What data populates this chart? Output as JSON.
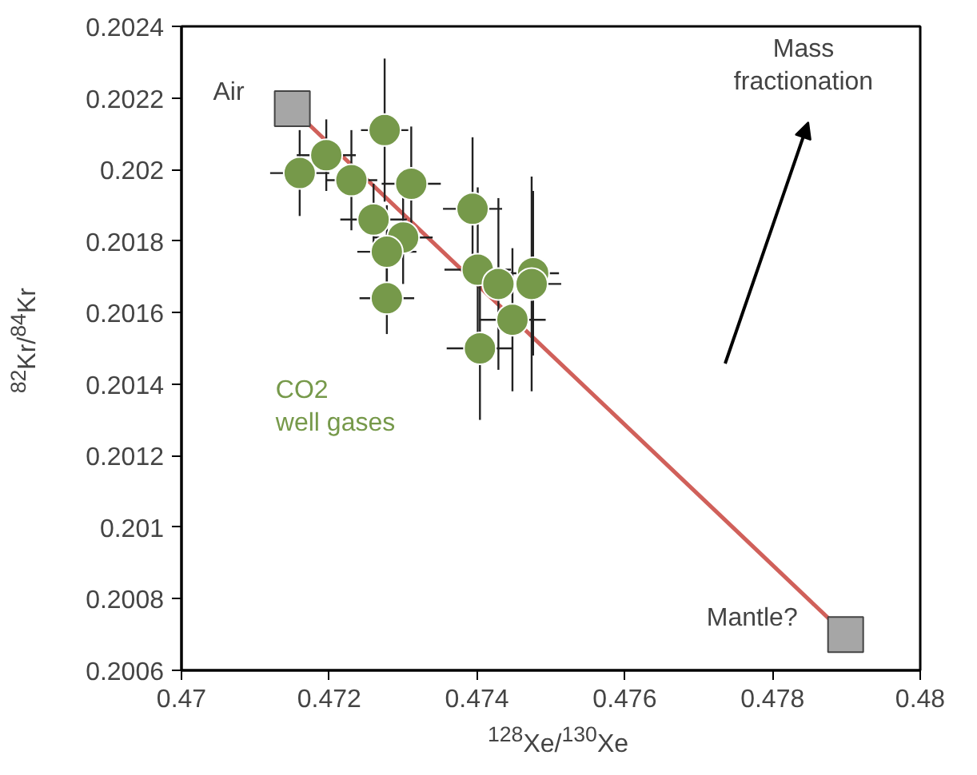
{
  "chart_data": {
    "type": "scatter",
    "xlabel": "$^{128}$Xe/$^{130}$Xe",
    "ylabel": "$^{82}$Kr/$^{84}$Kr",
    "xlim": [
      0.47,
      0.48
    ],
    "xticks": [
      0.47,
      0.472,
      0.474,
      0.476,
      0.478,
      0.48
    ],
    "ylim": [
      0.2006,
      0.2024
    ],
    "yticks": [
      0.2006,
      0.2008,
      0.201,
      0.2012,
      0.2014,
      0.2016,
      0.2018,
      0.202,
      0.2022,
      0.2024
    ],
    "grid": false,
    "series": [
      {
        "type": "line",
        "color": "#d0605a",
        "marker": "none",
        "x": [
          0.4715,
          0.47899
        ],
        "values": [
          0.20217,
          0.2007
        ]
      },
      {
        "type": "scatter",
        "color": "#a6a6a6",
        "marker": "square",
        "x": [
          0.4715,
          0.47899
        ],
        "values": [
          0.20217,
          0.2007
        ]
      },
      {
        "name": "CO2 well gases",
        "color": "#76994a",
        "marker": "circle",
        "x": [
          0.4716,
          0.47196,
          0.4723,
          0.47275,
          0.47311,
          0.4726,
          0.473,
          0.47278,
          0.47278,
          0.47394,
          0.47401,
          0.47429,
          0.47476,
          0.47474,
          0.47448,
          0.47404
        ],
        "values": [
          0.20199,
          0.20204,
          0.20197,
          0.20211,
          0.20196,
          0.20186,
          0.20181,
          0.20177,
          0.20164,
          0.20189,
          0.20172,
          0.20168,
          0.20171,
          0.20168,
          0.20158,
          0.2015
        ],
        "errors": [
          0.00012,
          0.0001,
          0.00014,
          0.0002,
          0.00016,
          0.0001,
          0.00013,
          0.00013,
          0.0001,
          0.0002,
          0.00023,
          0.00024,
          0.00023,
          0.0003,
          0.0002,
          0.0002
        ],
        "xerrors": [
          0.0004,
          0.0004,
          0.00035,
          0.00032,
          0.0004,
          0.00045,
          0.0004,
          0.0004,
          0.00037,
          0.0004,
          0.00045,
          0.0003,
          0.00035,
          0.0004,
          0.00045,
          0.00045
        ]
      }
    ],
    "annotations": [
      {
        "text": "Air",
        "x": 0.4715,
        "y": 0.20217
      },
      {
        "text": "Mantle?",
        "x": 0.47899,
        "y": 0.2007
      },
      "Mass fractionation"
    ]
  }
}
